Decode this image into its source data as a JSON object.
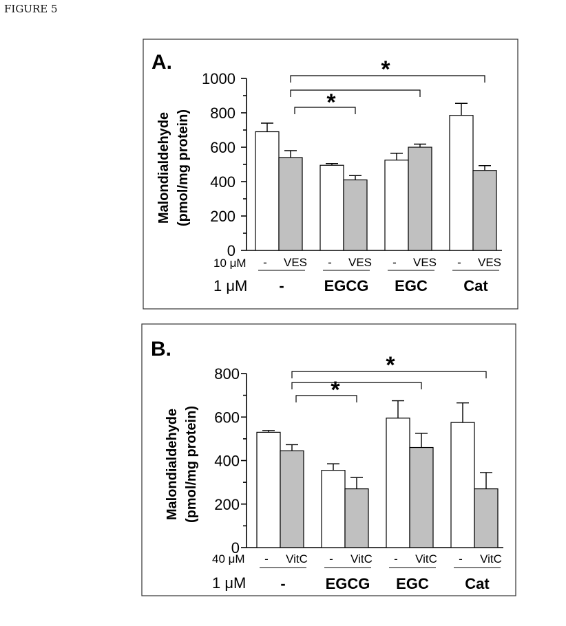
{
  "caption": "FIGURE 5",
  "chart_data": [
    {
      "type": "bar",
      "panel_label": "A.",
      "ylabel_line1": "Malondialdehyde",
      "ylabel_line2": "(pmol/mg protein)",
      "ylim": [
        0,
        1000
      ],
      "yticks": [
        "0",
        "200",
        "400",
        "600",
        "800",
        "1000"
      ],
      "treatment_row_label": "10 μM",
      "treatment_labels": [
        "-",
        "VES"
      ],
      "group_row_label": "1 μM",
      "categories": [
        "-",
        "EGCG",
        "EGC",
        "Cat"
      ],
      "series": [
        {
          "values": [
            690,
            495,
            525,
            785
          ],
          "errors": [
            50,
            10,
            40,
            70
          ]
        },
        {
          "values": [
            540,
            410,
            600,
            465
          ],
          "errors": [
            40,
            25,
            18,
            28
          ]
        }
      ],
      "significance": [
        "*",
        "*"
      ],
      "colors": {
        "control": "#ffffff",
        "treated": "#c0c0c0"
      }
    },
    {
      "type": "bar",
      "panel_label": "B.",
      "ylabel_line1": "Malondialdehyde",
      "ylabel_line2": "(pmol/mg protein)",
      "ylim": [
        0,
        800
      ],
      "yticks": [
        "0",
        "200",
        "400",
        "600",
        "800"
      ],
      "treatment_row_label": "40 μM",
      "treatment_labels": [
        "-",
        "VitC"
      ],
      "group_row_label": "1 μM",
      "categories": [
        "-",
        "EGCG",
        "EGC",
        "Cat"
      ],
      "series": [
        {
          "values": [
            530,
            355,
            595,
            575
          ],
          "errors": [
            8,
            30,
            80,
            90
          ]
        },
        {
          "values": [
            445,
            270,
            460,
            270
          ],
          "errors": [
            28,
            52,
            65,
            75
          ]
        }
      ],
      "significance": [
        "*",
        "*"
      ],
      "colors": {
        "control": "#ffffff",
        "treated": "#c0c0c0"
      }
    }
  ]
}
